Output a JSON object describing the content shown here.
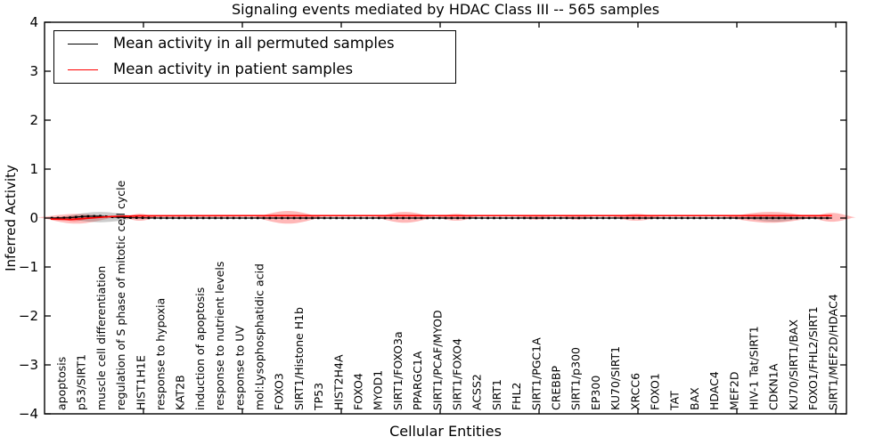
{
  "chart_data": {
    "type": "violin",
    "title": "Signaling events mediated by HDAC Class III -- 565 samples",
    "xlabel": "Cellular Entities",
    "ylabel": "Inferred Activity",
    "ylim": [
      -4,
      4
    ],
    "ytick_labels": [
      "4",
      "3",
      "2",
      "1",
      "0",
      "−1",
      "−2",
      "−3",
      "−4"
    ],
    "ytick_values": [
      4,
      3,
      2,
      1,
      0,
      -1,
      -2,
      -3,
      -4
    ],
    "grid": false,
    "legend_position": "upper-left",
    "legend": [
      {
        "label": "Mean activity in all permuted samples",
        "color": "#000000"
      },
      {
        "label": "Mean activity in patient samples",
        "color": "#ff0000"
      }
    ],
    "categories": [
      "apoptosis",
      "p53/SIRT1",
      "muscle cell differentiation",
      "regulation of S phase of mitotic cell cycle",
      "HIST1H1E",
      "response to hypoxia",
      "KAT2B",
      "induction of apoptosis",
      "response to nutrient levels",
      "response to UV",
      "mol:Lysophosphatidic acid",
      "FOXO3",
      "SIRT1/Histone H1b",
      "TP53",
      "HIST2H4A",
      "FOXO4",
      "MYOD1",
      "SIRT1/FOXO3a",
      "PPARGC1A",
      "SIRT1/PCAF/MYOD",
      "SIRT1/FOXO4",
      "ACSS2",
      "SIRT1",
      "FHL2",
      "SIRT1/PGC1A",
      "CREBBP",
      "SIRT1/p300",
      "EP300",
      "KU70/SIRT1",
      "XRCC6",
      "FOXO1",
      "TAT",
      "BAX",
      "HDAC4",
      "MEF2D",
      "HIV-1 Tat/SIRT1",
      "CDKN1A",
      "KU70/SIRT1/BAX",
      "FOXO1/FHL2/SIRT1",
      "SIRT1/MEF2D/HDAC4"
    ],
    "series": [
      {
        "name": "Mean activity in all permuted samples",
        "color": "#000000",
        "style": "solid-with-dash-markers",
        "points": [
          [
            -0.5,
            0.0
          ],
          [
            0.4,
            0.005
          ],
          [
            1.2,
            0.035
          ],
          [
            2.0,
            0.04
          ],
          [
            2.7,
            0.02
          ],
          [
            3.6,
            0.005
          ],
          [
            5.0,
            0.0
          ],
          [
            39.0,
            0.0
          ]
        ]
      },
      {
        "name": "Mean activity in patient samples",
        "color": "#ff0000",
        "style": "solid",
        "points": [
          [
            -0.5,
            -0.02
          ],
          [
            0.5,
            -0.03
          ],
          [
            1.5,
            0.0
          ],
          [
            2.5,
            0.03
          ],
          [
            4.0,
            0.045
          ],
          [
            10.0,
            0.05
          ],
          [
            39.0,
            0.05
          ]
        ]
      }
    ],
    "violins": [
      {
        "at": 0.8,
        "half_width": 2.0,
        "amp_up": 0.07,
        "amp_down": 0.13,
        "color": "#ff0000",
        "opacity": 0.25
      },
      {
        "at": 0.7,
        "half_width": 1.0,
        "amp_up": 0.03,
        "amp_down": 0.08,
        "color": "#ff0000",
        "opacity": 0.3
      },
      {
        "at": 2.0,
        "half_width": 2.2,
        "amp_up": 0.11,
        "amp_down": 0.1,
        "color": "#555555",
        "opacity": 0.3
      },
      {
        "at": 4.0,
        "half_width": 0.9,
        "amp_up": 0.07,
        "amp_down": 0.07,
        "color": "#ff0000",
        "opacity": 0.28
      },
      {
        "at": 11.5,
        "half_width": 1.8,
        "amp_up": 0.13,
        "amp_down": 0.13,
        "color": "#ff0000",
        "opacity": 0.28
      },
      {
        "at": 17.4,
        "half_width": 1.6,
        "amp_up": 0.11,
        "amp_down": 0.11,
        "color": "#ff0000",
        "opacity": 0.28
      },
      {
        "at": 20.0,
        "half_width": 1.1,
        "amp_up": 0.07,
        "amp_down": 0.07,
        "color": "#ff0000",
        "opacity": 0.25
      },
      {
        "at": 24.0,
        "half_width": 0.9,
        "amp_up": 0.05,
        "amp_down": 0.05,
        "color": "#ff0000",
        "opacity": 0.22
      },
      {
        "at": 26.1,
        "half_width": 0.9,
        "amp_up": 0.05,
        "amp_down": 0.05,
        "color": "#ff0000",
        "opacity": 0.22
      },
      {
        "at": 29.1,
        "half_width": 1.3,
        "amp_up": 0.07,
        "amp_down": 0.07,
        "color": "#ff0000",
        "opacity": 0.25
      },
      {
        "at": 35.9,
        "half_width": 2.5,
        "amp_up": 0.11,
        "amp_down": 0.11,
        "color": "#ff0000",
        "opacity": 0.28
      },
      {
        "at": 36.1,
        "half_width": 1.8,
        "amp_up": 0.03,
        "amp_down": 0.09,
        "color": "#555555",
        "opacity": 0.25
      },
      {
        "at": 39.0,
        "half_width": 1.2,
        "amp_up": 0.09,
        "amp_down": 0.09,
        "color": "#ff0000",
        "opacity": 0.28
      }
    ]
  }
}
